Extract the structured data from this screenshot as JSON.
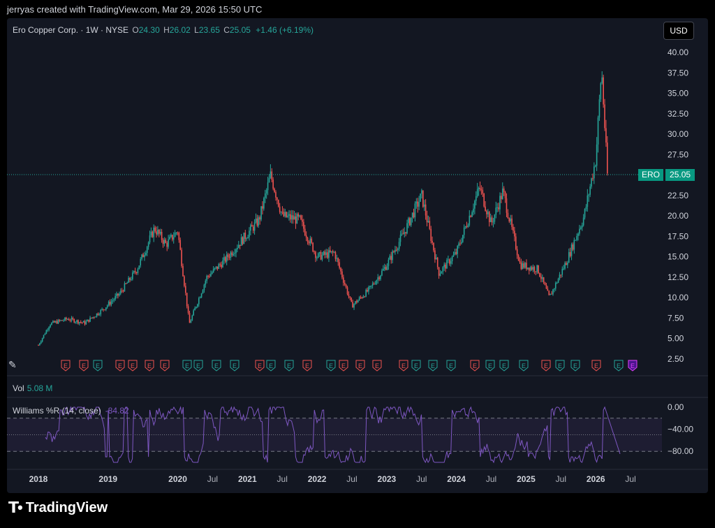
{
  "caption": "jerryas created with TradingView.com, Mar 29, 2026 15:50 UTC",
  "legend": {
    "name": "Ero Copper Corp. · 1W · NYSE",
    "o_label": "O",
    "o_value": "24.30",
    "h_label": "H",
    "h_value": "26.02",
    "l_label": "L",
    "l_value": "23.65",
    "c_label": "C",
    "c_value": "25.05",
    "change": "+1.46 (+6.19%)"
  },
  "currency_button": "USD",
  "price_tag": {
    "symbol": "ERO",
    "price": "25.05"
  },
  "volume": {
    "label": "Vol",
    "value": "5.08 M"
  },
  "williams": {
    "label": "Williams %R (14, close)",
    "value": "-84.82"
  },
  "branding": "TradingView",
  "colors": {
    "up": "#26a69a",
    "down": "#ef5350",
    "indicator": "#7e57c2",
    "background": "#131722"
  },
  "chart_data": [
    {
      "type": "candlestick",
      "title": "Ero Copper Corp. · 1W · NYSE",
      "ylim": [
        2.5,
        40
      ],
      "y_ticks": [
        "40.00",
        "37.50",
        "35.00",
        "32.50",
        "30.00",
        "27.50",
        "25.00",
        "22.50",
        "20.00",
        "17.50",
        "15.00",
        "12.50",
        "10.00",
        "7.50",
        "5.00",
        "2.50"
      ],
      "x_ticks": [
        "2018",
        "2019",
        "2020",
        "Jul",
        "2021",
        "Jul",
        "2022",
        "Jul",
        "2023",
        "Jul",
        "2024",
        "Jul",
        "2025",
        "Jul",
        "2026",
        "Jul"
      ],
      "last_price": 25.05,
      "approx_close_path": [
        {
          "x": "2018-01",
          "y": 4.2
        },
        {
          "x": "2018-03",
          "y": 6.8
        },
        {
          "x": "2018-06",
          "y": 7.4
        },
        {
          "x": "2018-09",
          "y": 6.9
        },
        {
          "x": "2018-12",
          "y": 8.5
        },
        {
          "x": "2019-03",
          "y": 10.5
        },
        {
          "x": "2019-06",
          "y": 13.5
        },
        {
          "x": "2019-09",
          "y": 18.5
        },
        {
          "x": "2019-11",
          "y": 16.5
        },
        {
          "x": "2020-01",
          "y": 18.2
        },
        {
          "x": "2020-03",
          "y": 6.8
        },
        {
          "x": "2020-06",
          "y": 12.5
        },
        {
          "x": "2020-09",
          "y": 14.5
        },
        {
          "x": "2020-12",
          "y": 17.0
        },
        {
          "x": "2021-03",
          "y": 19.5
        },
        {
          "x": "2021-05",
          "y": 25.0
        },
        {
          "x": "2021-07",
          "y": 20.0
        },
        {
          "x": "2021-10",
          "y": 19.5
        },
        {
          "x": "2022-01",
          "y": 15.0
        },
        {
          "x": "2022-04",
          "y": 15.5
        },
        {
          "x": "2022-07",
          "y": 9.0
        },
        {
          "x": "2022-10",
          "y": 11.0
        },
        {
          "x": "2023-01",
          "y": 14.0
        },
        {
          "x": "2023-04",
          "y": 18.0
        },
        {
          "x": "2023-07",
          "y": 22.5
        },
        {
          "x": "2023-10",
          "y": 13.0
        },
        {
          "x": "2024-01",
          "y": 15.5
        },
        {
          "x": "2024-05",
          "y": 23.5
        },
        {
          "x": "2024-07",
          "y": 19.0
        },
        {
          "x": "2024-09",
          "y": 23.0
        },
        {
          "x": "2024-12",
          "y": 14.0
        },
        {
          "x": "2025-03",
          "y": 13.5
        },
        {
          "x": "2025-05",
          "y": 10.0
        },
        {
          "x": "2025-08",
          "y": 14.5
        },
        {
          "x": "2025-11",
          "y": 20.0
        },
        {
          "x": "2026-01",
          "y": 27.0
        },
        {
          "x": "2026-02",
          "y": 38.0
        },
        {
          "x": "2026-03",
          "y": 25.05
        }
      ]
    },
    {
      "type": "line",
      "title": "Williams %R (14, close)",
      "ylim": [
        -100,
        0
      ],
      "y_ticks": [
        "0.00",
        "−40.00",
        "−80.00"
      ],
      "band": [
        -80,
        -20
      ],
      "last_value": -84.82
    }
  ]
}
